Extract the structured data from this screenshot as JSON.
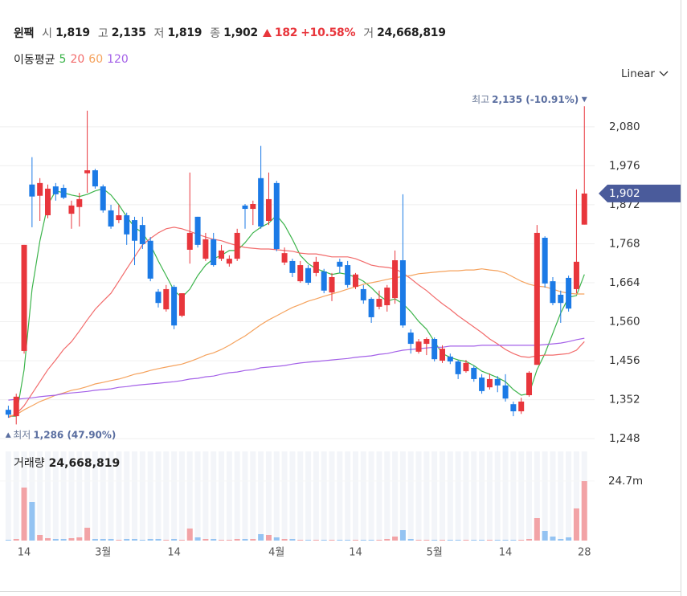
{
  "header": {
    "name": "윈팩",
    "open_label": "시",
    "open": "1,819",
    "high_label": "고",
    "high": "2,135",
    "low_label": "저",
    "low": "1,819",
    "close_label": "종",
    "close": "1,902",
    "change": "182",
    "change_pct": "+10.58%",
    "volume_label": "거",
    "volume": "24,668,819"
  },
  "chart_data": [
    {
      "type": "candlestick",
      "legend_title": "이동평균",
      "scale": "Linear",
      "categories": [
        null,
        null,
        "14",
        null,
        null,
        null,
        null,
        null,
        null,
        null,
        null,
        null,
        "3월",
        null,
        null,
        null,
        null,
        null,
        null,
        null,
        null,
        "14",
        null,
        null,
        null,
        null,
        null,
        null,
        null,
        null,
        null,
        null,
        null,
        null,
        "4월",
        null,
        null,
        null,
        null,
        null,
        null,
        null,
        null,
        null,
        "14",
        null,
        null,
        null,
        null,
        null,
        null,
        null,
        null,
        null,
        "5월",
        null,
        null,
        null,
        null,
        null,
        null,
        null,
        null,
        "14",
        null,
        null,
        null,
        null,
        null,
        null,
        null,
        null,
        null,
        "28"
      ],
      "open": [
        1325,
        1308,
        1482,
        1926,
        1896,
        1844,
        1921,
        1917,
        1848,
        1866,
        1956,
        1964,
        1921,
        1857,
        1831,
        1844,
        1831,
        1818,
        1776,
        1640,
        1593,
        1653,
        1576,
        1752,
        1840,
        1728,
        1780,
        1728,
        1715,
        1728,
        1870,
        1861,
        1943,
        1829,
        1930,
        1718,
        1722,
        1668,
        1703,
        1690,
        1694,
        1638,
        1720,
        1711,
        1653,
        1647,
        1621,
        1600,
        1604,
        1623,
        1724,
        1531,
        1480,
        1501,
        1514,
        1456,
        1467,
        1454,
        1428,
        1437,
        1411,
        1385,
        1407,
        1390,
        1340,
        1321,
        1364,
        1445,
        1784,
        1668,
        1632,
        1677,
        1647,
        1819
      ],
      "high": [
        1336,
        1368,
        1765,
        1999,
        1943,
        1926,
        1930,
        1926,
        1883,
        1904,
        2123,
        1968,
        1926,
        1872,
        1872,
        1851,
        1840,
        1840,
        1786,
        1647,
        1658,
        1658,
        1636,
        1958,
        1840,
        1797,
        1797,
        1765,
        1737,
        1808,
        1874,
        1883,
        2029,
        1958,
        1936,
        1758,
        1728,
        1722,
        1711,
        1733,
        1701,
        1690,
        1728,
        1722,
        1690,
        1658,
        1625,
        1643,
        1658,
        1750,
        1900,
        1540,
        1514,
        1518,
        1518,
        1497,
        1475,
        1458,
        1458,
        1443,
        1420,
        1422,
        1415,
        1420,
        1347,
        1357,
        1428,
        1818,
        1788,
        1679,
        1643,
        1683,
        1913,
        2135
      ],
      "low": [
        1304,
        1286,
        1475,
        1812,
        1829,
        1836,
        1883,
        1887,
        1808,
        1814,
        1904,
        1915,
        1851,
        1808,
        1823,
        1765,
        1711,
        1754,
        1668,
        1598,
        1587,
        1540,
        1572,
        1715,
        1758,
        1722,
        1707,
        1722,
        1707,
        1722,
        1808,
        1818,
        1808,
        1818,
        1748,
        1711,
        1679,
        1664,
        1658,
        1681,
        1636,
        1615,
        1690,
        1651,
        1647,
        1608,
        1557,
        1593,
        1587,
        1608,
        1544,
        1475,
        1475,
        1471,
        1454,
        1450,
        1447,
        1407,
        1424,
        1400,
        1368,
        1379,
        1372,
        1347,
        1308,
        1314,
        1360,
        1445,
        1651,
        1604,
        1557,
        1587,
        1636,
        1819
      ],
      "close": [
        1312,
        1360,
        1765,
        1894,
        1930,
        1915,
        1900,
        1891,
        1870,
        1887,
        1964,
        1921,
        1857,
        1814,
        1844,
        1793,
        1776,
        1767,
        1675,
        1610,
        1647,
        1550,
        1636,
        1797,
        1765,
        1780,
        1711,
        1750,
        1728,
        1797,
        1861,
        1874,
        1814,
        1887,
        1754,
        1743,
        1690,
        1711,
        1664,
        1720,
        1643,
        1679,
        1707,
        1658,
        1686,
        1617,
        1572,
        1621,
        1651,
        1724,
        1550,
        1501,
        1507,
        1514,
        1460,
        1488,
        1454,
        1420,
        1450,
        1407,
        1375,
        1407,
        1390,
        1355,
        1321,
        1347,
        1424,
        1797,
        1662,
        1610,
        1610,
        1595,
        1720,
        1902
      ],
      "up_color": "#e8363c",
      "down_color": "#1b7ae6",
      "series": [
        {
          "name": "5",
          "color": "#3cb44b",
          "values": [
            1308,
            1308,
            1432,
            1647,
            1776,
            1872,
            1909,
            1904,
            1898,
            1894,
            1900,
            1909,
            1915,
            1898,
            1872,
            1840,
            1812,
            1797,
            1765,
            1722,
            1683,
            1643,
            1625,
            1647,
            1683,
            1711,
            1728,
            1737,
            1750,
            1750,
            1771,
            1797,
            1812,
            1823,
            1844,
            1818,
            1780,
            1737,
            1715,
            1701,
            1694,
            1686,
            1690,
            1686,
            1679,
            1668,
            1651,
            1630,
            1615,
            1621,
            1608,
            1587,
            1561,
            1540,
            1507,
            1475,
            1465,
            1458,
            1454,
            1443,
            1428,
            1420,
            1411,
            1400,
            1379,
            1364,
            1368,
            1432,
            1475,
            1529,
            1583,
            1625,
            1630,
            1686
          ]
        },
        {
          "name": "20",
          "color": "#f26b6b",
          "values": [
            1304,
            1314,
            1336,
            1368,
            1400,
            1432,
            1458,
            1486,
            1507,
            1535,
            1565,
            1593,
            1615,
            1636,
            1668,
            1701,
            1733,
            1765,
            1782,
            1797,
            1808,
            1812,
            1808,
            1801,
            1793,
            1786,
            1780,
            1776,
            1769,
            1763,
            1758,
            1756,
            1754,
            1754,
            1752,
            1750,
            1748,
            1743,
            1741,
            1741,
            1737,
            1733,
            1733,
            1733,
            1728,
            1720,
            1711,
            1707,
            1705,
            1701,
            1690,
            1675,
            1658,
            1643,
            1625,
            1608,
            1593,
            1576,
            1561,
            1546,
            1531,
            1514,
            1501,
            1486,
            1475,
            1467,
            1465,
            1469,
            1471,
            1471,
            1473,
            1475,
            1484,
            1507
          ]
        },
        {
          "name": "60",
          "color": "#f5a25d",
          "values": [
            1308,
            1312,
            1325,
            1336,
            1347,
            1355,
            1364,
            1370,
            1377,
            1381,
            1387,
            1394,
            1398,
            1403,
            1407,
            1413,
            1420,
            1424,
            1430,
            1435,
            1439,
            1443,
            1447,
            1454,
            1462,
            1471,
            1477,
            1486,
            1497,
            1510,
            1522,
            1537,
            1552,
            1565,
            1576,
            1587,
            1598,
            1606,
            1615,
            1621,
            1628,
            1634,
            1640,
            1647,
            1653,
            1660,
            1664,
            1668,
            1673,
            1677,
            1681,
            1683,
            1688,
            1690,
            1692,
            1694,
            1696,
            1696,
            1698,
            1698,
            1701,
            1698,
            1696,
            1690,
            1679,
            1668,
            1660,
            1655,
            1653,
            1647,
            1640,
            1636,
            1634,
            1634
          ]
        },
        {
          "name": "120",
          "color": "#a461e8",
          "values": [
            1351,
            1353,
            1355,
            1357,
            1360,
            1362,
            1364,
            1368,
            1370,
            1372,
            1374,
            1377,
            1379,
            1381,
            1385,
            1387,
            1390,
            1392,
            1394,
            1396,
            1398,
            1400,
            1403,
            1407,
            1409,
            1413,
            1415,
            1420,
            1424,
            1426,
            1430,
            1432,
            1437,
            1439,
            1441,
            1443,
            1447,
            1450,
            1452,
            1454,
            1456,
            1458,
            1460,
            1462,
            1465,
            1467,
            1469,
            1473,
            1475,
            1480,
            1484,
            1486,
            1488,
            1490,
            1492,
            1492,
            1495,
            1495,
            1495,
            1495,
            1497,
            1497,
            1497,
            1497,
            1497,
            1497,
            1497,
            1497,
            1499,
            1501,
            1503,
            1507,
            1512,
            1516
          ]
        }
      ],
      "ylim": [
        1229,
        2204
      ],
      "yticks": [
        {
          "value": 1248,
          "label": "1,248"
        },
        {
          "value": 1352,
          "label": "1,352"
        },
        {
          "value": 1456,
          "label": "1,456"
        },
        {
          "value": 1560,
          "label": "1,560"
        },
        {
          "value": 1664,
          "label": "1,664"
        },
        {
          "value": 1768,
          "label": "1,768"
        },
        {
          "value": 1872,
          "label": "1,872"
        },
        {
          "value": 1976,
          "label": "1,976"
        },
        {
          "value": 2080,
          "label": "2,080"
        }
      ],
      "grid": true,
      "max_marker": {
        "label": "최고",
        "text": "2,135 (-10.91%)"
      },
      "min_marker": {
        "label": "최저",
        "text": "1,286 (47.90%)"
      },
      "last_price": "1,902"
    },
    {
      "type": "bar",
      "title": "거래량",
      "title_value": "24,668,819",
      "values": [
        333000,
        667000,
        22000000,
        16000000,
        2333000,
        1000000,
        667000,
        667000,
        1000000,
        1333000,
        5333000,
        667000,
        667000,
        667000,
        333000,
        667000,
        667000,
        333000,
        667000,
        667000,
        333000,
        667000,
        333000,
        5000000,
        1333000,
        667000,
        667000,
        333000,
        333000,
        667000,
        667000,
        667000,
        2667000,
        2333000,
        1333000,
        667000,
        667000,
        333000,
        333000,
        333000,
        333000,
        333000,
        333000,
        333000,
        333000,
        333000,
        333000,
        333000,
        667000,
        1667000,
        4333000,
        667000,
        333000,
        333000,
        333000,
        333000,
        333000,
        333000,
        333000,
        333000,
        333000,
        333000,
        333000,
        333000,
        333000,
        333000,
        667000,
        9333000,
        4000000,
        1667000,
        667000,
        1333000,
        13333000,
        24668819
      ],
      "up_color": "#f2a3a6",
      "down_color": "#94c3f2",
      "ylim": [
        0,
        37000000
      ],
      "yticks": [
        {
          "value": 24700000,
          "label": "24.7m"
        }
      ]
    }
  ]
}
